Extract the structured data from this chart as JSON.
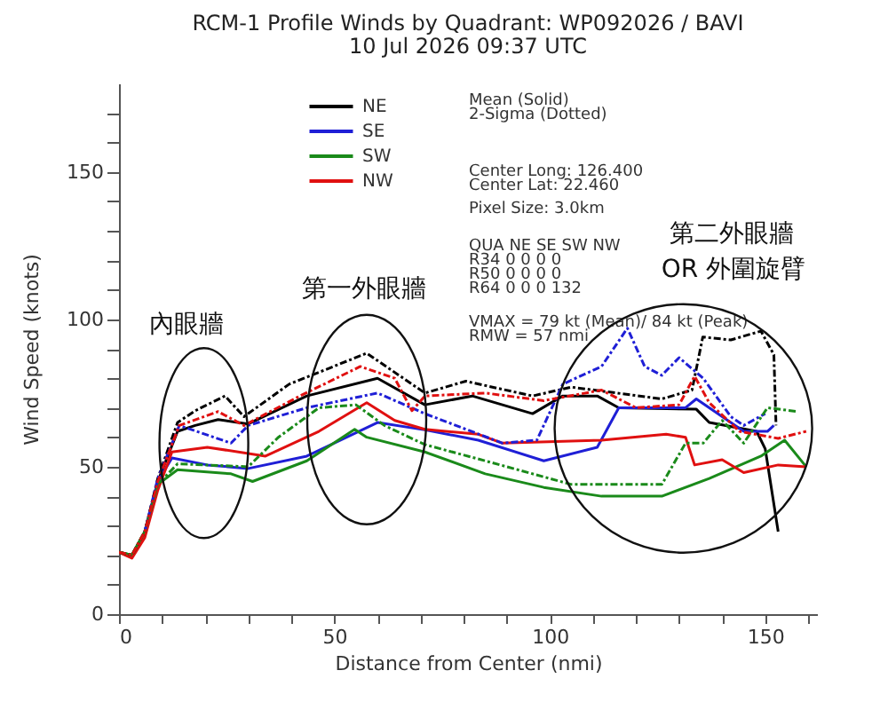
{
  "chart_data": {
    "type": "line",
    "title": "RCM-1 Profile Winds by Quadrant: WP092026 / BAVI",
    "subtitle": "10 Jul 2026 09:37 UTC",
    "xlabel": "Distance from Center (nmi)",
    "ylabel": "Wind Speed (knots)",
    "xlim": [
      0,
      162
    ],
    "ylim": [
      0,
      180
    ],
    "xticks": [
      0,
      {
        "value": 10,
        "label": null
      },
      {
        "value": 20,
        "label": null
      },
      {
        "value": 30,
        "label": null
      },
      {
        "value": 40,
        "label": null
      },
      50,
      {
        "value": 60,
        "label": null
      },
      {
        "value": 70,
        "label": null
      },
      {
        "value": 80,
        "label": null
      },
      {
        "value": 90,
        "label": null
      },
      100,
      {
        "value": 110,
        "label": null
      },
      {
        "value": 120,
        "label": null
      },
      {
        "value": 130,
        "label": null
      },
      {
        "value": 140,
        "label": null
      },
      150,
      {
        "value": 160,
        "label": null
      }
    ],
    "yticks": [
      0,
      {
        "value": 10,
        "label": null
      },
      {
        "value": 20,
        "label": null
      },
      {
        "value": 30,
        "label": null
      },
      {
        "value": 40,
        "label": null
      },
      50,
      {
        "value": 60,
        "label": null
      },
      {
        "value": 70,
        "label": null
      },
      {
        "value": 80,
        "label": null
      },
      {
        "value": 90,
        "label": null
      },
      100,
      {
        "value": 110,
        "label": null
      },
      {
        "value": 120,
        "label": null
      },
      {
        "value": 130,
        "label": null
      },
      {
        "value": 140,
        "label": null
      },
      150,
      {
        "value": 160,
        "label": null
      },
      {
        "value": 170,
        "label": null
      }
    ],
    "grid": false,
    "legend": "top",
    "marker": "none",
    "series": [
      {
        "name": "NE",
        "color": "#000000",
        "line_style": "solid",
        "x": [
          0,
          3,
          6,
          9,
          13.6,
          17.7,
          23,
          30,
          43.6,
          60,
          71,
          82,
          96,
          103,
          111,
          116,
          134,
          137,
          148,
          150,
          153
        ],
        "values": [
          21,
          20,
          28,
          45,
          62,
          64,
          66,
          64.5,
          74,
          80,
          71,
          74,
          68,
          74,
          74,
          70,
          69.5,
          65,
          62,
          56,
          28
        ]
      },
      {
        "name": "SE",
        "color": "#1f1fd6",
        "line_style": "solid",
        "x": [
          6,
          9,
          12.3,
          20.5,
          30,
          43.6,
          60,
          71,
          83.4,
          98.6,
          111,
          116,
          131.5,
          134,
          145,
          150.5,
          152
        ],
        "values": [
          28,
          45,
          53,
          50.6,
          49.4,
          53.6,
          65,
          62.5,
          59,
          52,
          56.6,
          70,
          70,
          73,
          62,
          62,
          64
        ]
      },
      {
        "name": "SW",
        "color": "#1a8a1a",
        "line_style": "solid",
        "x": [
          0,
          3,
          6,
          9,
          13.6,
          26,
          31,
          43.6,
          54.7,
          57.5,
          71,
          85,
          98.6,
          112,
          126,
          137,
          149,
          154.5,
          159.5
        ],
        "values": [
          21,
          20,
          28,
          44,
          49,
          47.6,
          45,
          52,
          62.7,
          60,
          55,
          47.6,
          43,
          40,
          40,
          46,
          53.6,
          59,
          50
        ]
      },
      {
        "name": "NW",
        "color": "#e01010",
        "line_style": "solid",
        "x": [
          0,
          3,
          6,
          9,
          12.3,
          20.5,
          34,
          46.4,
          57.5,
          64,
          71,
          83.4,
          89,
          112,
          127,
          131.5,
          133.6,
          140,
          145,
          153,
          159.5
        ],
        "values": [
          21,
          19,
          26,
          42,
          55,
          56.6,
          53.6,
          62,
          71.7,
          65.7,
          62.7,
          61,
          58,
          59,
          61,
          60,
          50.6,
          52.4,
          48,
          50.6,
          50
        ]
      },
      {
        "color": "#000000",
        "line_style": "dashed",
        "x": [
          0,
          3,
          6,
          9,
          13.6,
          17.7,
          24.6,
          29,
          39.5,
          57.5,
          71,
          80.5,
          96,
          105,
          126,
          133,
          135.5,
          142,
          149,
          152,
          152.5
        ],
        "values": [
          21,
          20,
          28,
          46,
          65,
          69,
          74,
          67,
          78,
          88.5,
          75,
          79,
          74,
          77,
          73,
          76,
          94,
          93,
          96,
          88,
          64
        ]
      },
      {
        "color": "#1f1fd6",
        "line_style": "dashed",
        "x": [
          6,
          9,
          14,
          26,
          30,
          43.6,
          60,
          71,
          89,
          97,
          103,
          112,
          118,
          122,
          126,
          130,
          135.6,
          142,
          145,
          150
        ],
        "values": [
          28,
          46,
          64,
          58,
          64,
          70,
          75,
          68,
          58,
          59,
          78,
          84,
          97,
          84,
          81,
          87,
          80,
          67,
          64,
          68
        ]
      },
      {
        "color": "#1a8a1a",
        "line_style": "dashed",
        "x": [
          0,
          3,
          6,
          9,
          13.6,
          30,
          37,
          46.4,
          55,
          61.6,
          71,
          85,
          105,
          126,
          131.5,
          135.6,
          140,
          145,
          150.5,
          157.5
        ],
        "values": [
          21,
          20,
          28,
          44,
          51,
          50,
          60,
          70,
          71,
          64,
          57.5,
          52,
          44,
          44,
          58,
          58,
          65.7,
          58,
          70,
          68.7
        ]
      },
      {
        "color": "#e01010",
        "line_style": "dashed",
        "x": [
          0,
          3,
          6,
          9,
          14,
          23,
          29,
          42,
          56,
          64,
          68,
          71,
          85,
          98.6,
          112,
          120,
          130,
          133.6,
          137,
          144,
          153,
          159.5
        ],
        "values": [
          21,
          20,
          28,
          45,
          64,
          68.7,
          64,
          74,
          84,
          80,
          69,
          74,
          75,
          72.4,
          76,
          70,
          71,
          80.7,
          71.7,
          62,
          59.6,
          62
        ]
      }
    ],
    "annotations": [
      "Mean (Solid)",
      "2-Sigma (Dotted)",
      "Center Long: 126.400",
      "Center Lat: 22.460",
      "Pixel Size: 3.0km",
      "QUA NE SE SW NW",
      "R34 0 0 0 0",
      "R50 0 0 0 0",
      "R64 0 0 0 132",
      "VMAX = 79 kt (Mean)/ 84 kt (Peak)",
      "RMW = 57 nmi",
      "內眼牆",
      "第一外眼牆",
      "第二外眼牆",
      "OR 外圍旋臂"
    ]
  }
}
